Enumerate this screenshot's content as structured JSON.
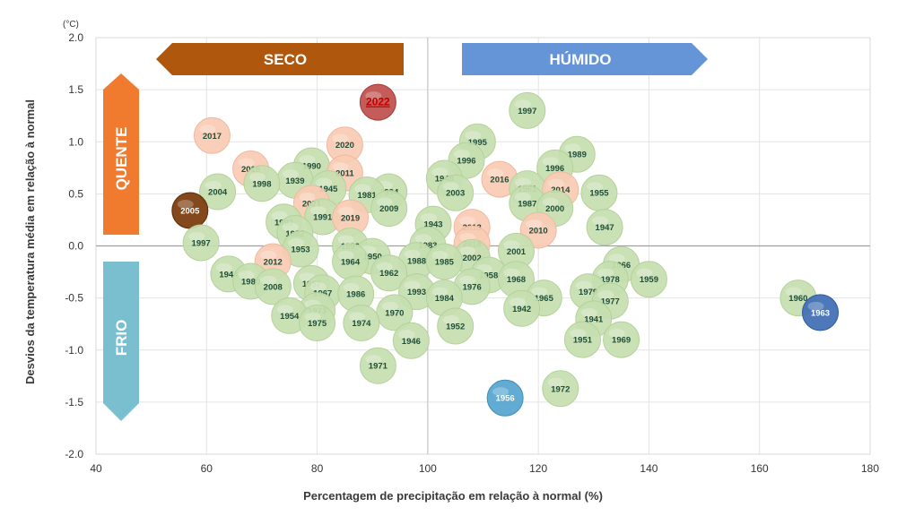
{
  "chart_data": {
    "type": "scatter",
    "xlabel": "Percentagem de precipitação em relação à normal (%)",
    "ylabel": "Desvios da temperatura média em relação à normal",
    "y_unit": "(°C)",
    "xlim": [
      40,
      180
    ],
    "ylim": [
      -2.0,
      2.0
    ],
    "x_ticks": [
      "40",
      "60",
      "80",
      "100",
      "120",
      "140",
      "160",
      "180"
    ],
    "y_ticks": [
      "2.0",
      "1.5",
      "1.0",
      "0.5",
      "0.0",
      "-0.5",
      "-1.0",
      "-1.5",
      "-2.0"
    ],
    "reference_lines": {
      "x": 100,
      "y": 0
    },
    "colors": {
      "normal": "#c6dfb0",
      "recent": "#f9cbb4",
      "highlight_2022": "#c0504d",
      "highlight_2005": "#7b3a0c",
      "cold_extreme": "#56a5cf",
      "dark_blue": "#3f6eb4",
      "label": "#1f4e3a"
    },
    "banners": {
      "dry": {
        "label": "SECO",
        "color": "#b0570e"
      },
      "wet": {
        "label": "HÚMIDO",
        "color": "#6595d6"
      },
      "hot": {
        "label": "QUENTE",
        "color": "#f07b2e"
      },
      "cold": {
        "label": "FRIO",
        "color": "#79bfd0"
      }
    },
    "points": [
      {
        "label": "2022",
        "x": 91,
        "y": 1.38,
        "style": "highlight_2022"
      },
      {
        "label": "1997",
        "x": 118,
        "y": 1.3,
        "style": "normal"
      },
      {
        "label": "2017",
        "x": 61,
        "y": 1.06,
        "style": "recent"
      },
      {
        "label": "1995",
        "x": 109,
        "y": 1.0,
        "style": "normal"
      },
      {
        "label": "2020",
        "x": 85,
        "y": 0.97,
        "style": "recent"
      },
      {
        "label": "1989",
        "x": 127,
        "y": 0.88,
        "style": "normal"
      },
      {
        "label": "1996",
        "x": 107,
        "y": 0.82,
        "style": "normal"
      },
      {
        "label": "1990",
        "x": 79,
        "y": 0.77,
        "style": "normal"
      },
      {
        "label": "2015",
        "x": 68,
        "y": 0.74,
        "style": "recent"
      },
      {
        "label": "1996",
        "x": 123,
        "y": 0.75,
        "style": "normal"
      },
      {
        "label": "2011",
        "x": 85,
        "y": 0.7,
        "style": "recent"
      },
      {
        "label": "1948",
        "x": 103,
        "y": 0.65,
        "style": "normal"
      },
      {
        "label": "2016",
        "x": 113,
        "y": 0.64,
        "style": "recent"
      },
      {
        "label": "1939",
        "x": 76,
        "y": 0.63,
        "style": "normal"
      },
      {
        "label": "1998",
        "x": 70,
        "y": 0.6,
        "style": "normal"
      },
      {
        "label": "1945",
        "x": 82,
        "y": 0.55,
        "style": "normal"
      },
      {
        "label": "1961",
        "x": 118,
        "y": 0.55,
        "style": "normal"
      },
      {
        "label": "2014",
        "x": 124,
        "y": 0.54,
        "style": "recent"
      },
      {
        "label": "2004",
        "x": 62,
        "y": 0.52,
        "style": "normal"
      },
      {
        "label": "1994",
        "x": 93,
        "y": 0.52,
        "style": "normal"
      },
      {
        "label": "2003",
        "x": 105,
        "y": 0.51,
        "style": "normal"
      },
      {
        "label": "1955",
        "x": 131,
        "y": 0.51,
        "style": "normal"
      },
      {
        "label": "1981",
        "x": 89,
        "y": 0.49,
        "style": "normal"
      },
      {
        "label": "2021",
        "x": 79,
        "y": 0.41,
        "style": "recent"
      },
      {
        "label": "1987",
        "x": 118,
        "y": 0.41,
        "style": "normal"
      },
      {
        "label": "2000",
        "x": 123,
        "y": 0.36,
        "style": "normal"
      },
      {
        "label": "2005",
        "x": 57,
        "y": 0.34,
        "style": "highlight_2005"
      },
      {
        "label": "2009",
        "x": 93,
        "y": 0.36,
        "style": "normal"
      },
      {
        "label": "1991",
        "x": 81,
        "y": 0.28,
        "style": "normal"
      },
      {
        "label": "2019",
        "x": 86,
        "y": 0.27,
        "style": "recent"
      },
      {
        "label": "1992",
        "x": 74,
        "y": 0.23,
        "style": "normal"
      },
      {
        "label": "1943",
        "x": 101,
        "y": 0.21,
        "style": "normal"
      },
      {
        "label": "2013",
        "x": 108,
        "y": 0.18,
        "style": "recent"
      },
      {
        "label": "1947",
        "x": 132,
        "y": 0.18,
        "style": "normal"
      },
      {
        "label": "2010",
        "x": 120,
        "y": 0.15,
        "style": "recent"
      },
      {
        "label": "1982",
        "x": 76,
        "y": 0.12,
        "style": "normal"
      },
      {
        "label": "1997",
        "x": 59,
        "y": 0.03,
        "style": "normal"
      },
      {
        "label": "1999",
        "x": 86,
        "y": 0.0,
        "style": "normal"
      },
      {
        "label": "1983",
        "x": 100,
        "y": 0.01,
        "style": "normal"
      },
      {
        "label": "2018",
        "x": 108,
        "y": 0.02,
        "style": "recent"
      },
      {
        "label": "1953",
        "x": 77,
        "y": -0.03,
        "style": "normal"
      },
      {
        "label": "2001",
        "x": 116,
        "y": -0.05,
        "style": "normal"
      },
      {
        "label": "1950",
        "x": 90,
        "y": -0.1,
        "style": "normal"
      },
      {
        "label": "2002",
        "x": 108,
        "y": -0.11,
        "style": "normal"
      },
      {
        "label": "2012",
        "x": 72,
        "y": -0.15,
        "style": "recent"
      },
      {
        "label": "1964",
        "x": 86,
        "y": -0.15,
        "style": "normal"
      },
      {
        "label": "1988",
        "x": 98,
        "y": -0.14,
        "style": "normal"
      },
      {
        "label": "1985",
        "x": 103,
        "y": -0.15,
        "style": "normal"
      },
      {
        "label": "1966",
        "x": 135,
        "y": -0.18,
        "style": "normal"
      },
      {
        "label": "1962",
        "x": 93,
        "y": -0.26,
        "style": "normal"
      },
      {
        "label": "1944",
        "x": 64,
        "y": -0.27,
        "style": "normal"
      },
      {
        "label": "1958",
        "x": 111,
        "y": -0.28,
        "style": "normal"
      },
      {
        "label": "1968",
        "x": 116,
        "y": -0.32,
        "style": "normal"
      },
      {
        "label": "1978",
        "x": 133,
        "y": -0.32,
        "style": "normal"
      },
      {
        "label": "1959",
        "x": 140,
        "y": -0.32,
        "style": "normal"
      },
      {
        "label": "1980",
        "x": 68,
        "y": -0.34,
        "style": "normal"
      },
      {
        "label": "1957",
        "x": 79,
        "y": -0.36,
        "style": "normal"
      },
      {
        "label": "2008",
        "x": 72,
        "y": -0.39,
        "style": "normal"
      },
      {
        "label": "1976",
        "x": 108,
        "y": -0.39,
        "style": "normal"
      },
      {
        "label": "1967",
        "x": 81,
        "y": -0.45,
        "style": "normal"
      },
      {
        "label": "1993",
        "x": 98,
        "y": -0.44,
        "style": "normal"
      },
      {
        "label": "1979",
        "x": 129,
        "y": -0.44,
        "style": "normal"
      },
      {
        "label": "1986",
        "x": 87,
        "y": -0.46,
        "style": "normal"
      },
      {
        "label": "1984",
        "x": 103,
        "y": -0.5,
        "style": "normal"
      },
      {
        "label": "1965",
        "x": 121,
        "y": -0.5,
        "style": "normal"
      },
      {
        "label": "1960",
        "x": 167,
        "y": -0.5,
        "style": "normal"
      },
      {
        "label": "1977",
        "x": 133,
        "y": -0.53,
        "style": "normal"
      },
      {
        "label": "1942",
        "x": 117,
        "y": -0.6,
        "style": "normal"
      },
      {
        "label": "1973",
        "x": 80,
        "y": -0.62,
        "style": "normal"
      },
      {
        "label": "1970",
        "x": 94,
        "y": -0.64,
        "style": "normal"
      },
      {
        "label": "1963",
        "x": 171,
        "y": -0.64,
        "style": "dark_blue"
      },
      {
        "label": "1954",
        "x": 75,
        "y": -0.67,
        "style": "normal"
      },
      {
        "label": "1941",
        "x": 130,
        "y": -0.7,
        "style": "normal"
      },
      {
        "label": "1975",
        "x": 80,
        "y": -0.74,
        "style": "normal"
      },
      {
        "label": "1974",
        "x": 88,
        "y": -0.74,
        "style": "normal"
      },
      {
        "label": "1952",
        "x": 105,
        "y": -0.77,
        "style": "normal"
      },
      {
        "label": "1951",
        "x": 128,
        "y": -0.9,
        "style": "normal"
      },
      {
        "label": "1969",
        "x": 135,
        "y": -0.9,
        "style": "normal"
      },
      {
        "label": "1946",
        "x": 97,
        "y": -0.91,
        "style": "normal"
      },
      {
        "label": "1971",
        "x": 91,
        "y": -1.15,
        "style": "normal"
      },
      {
        "label": "1972",
        "x": 124,
        "y": -1.37,
        "style": "normal"
      },
      {
        "label": "1956",
        "x": 114,
        "y": -1.46,
        "style": "cold_extreme"
      }
    ]
  }
}
